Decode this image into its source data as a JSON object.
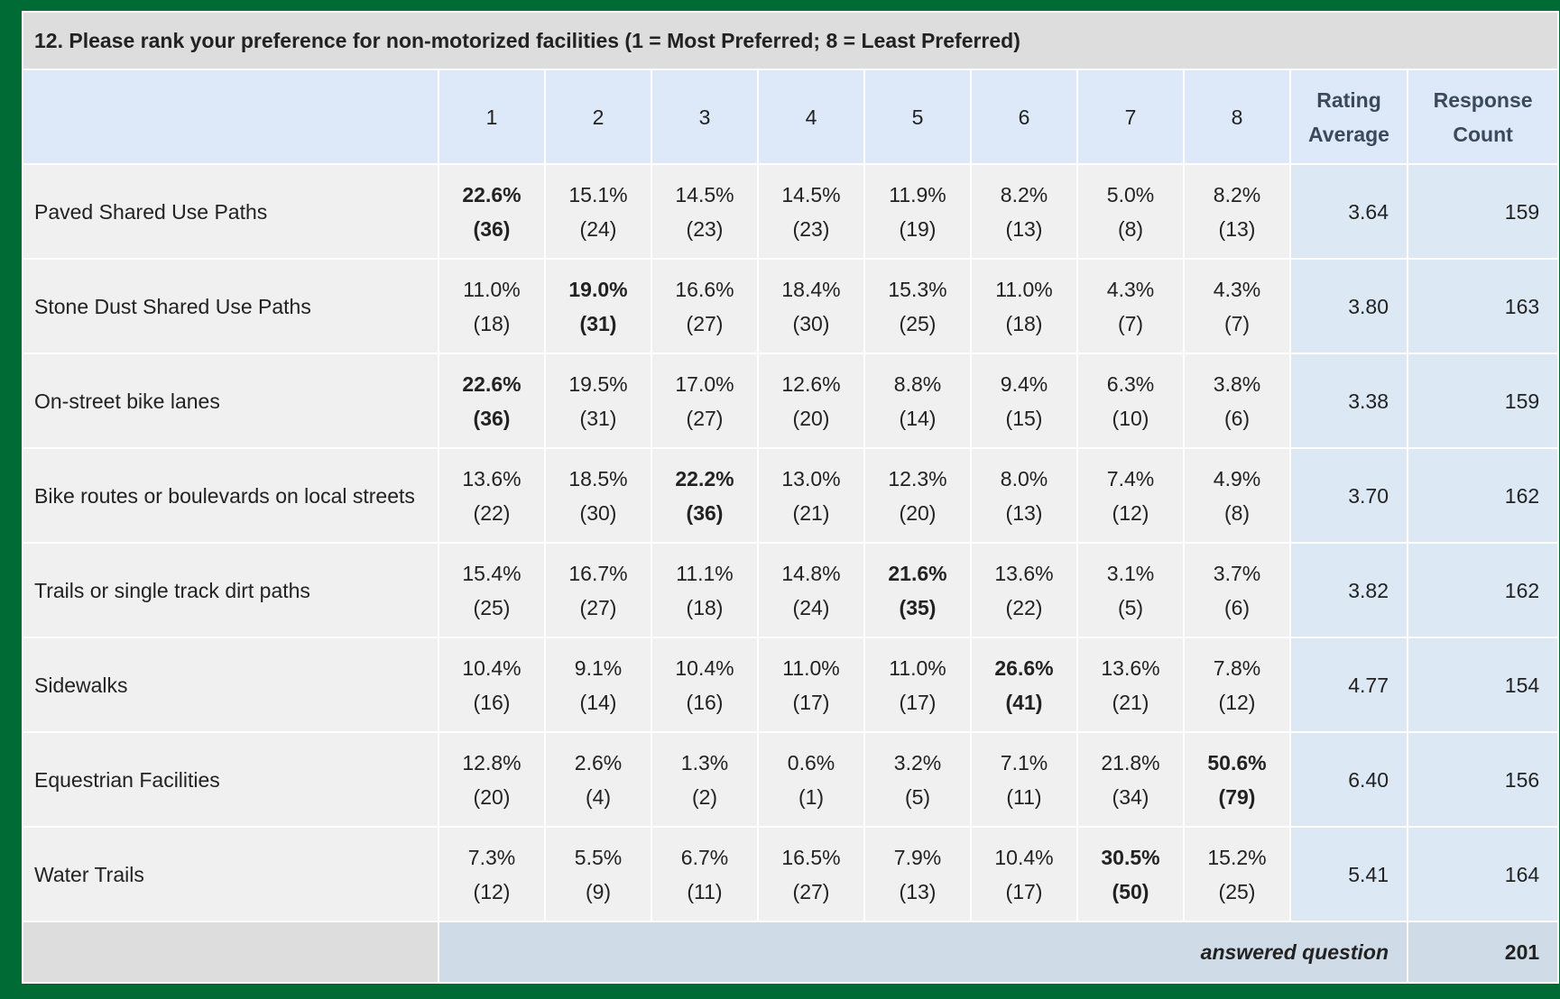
{
  "title": "12. Please rank your preference for non-motorized facilities (1 = Most Preferred; 8 = Least Preferred)",
  "table": {
    "columns": [
      "1",
      "2",
      "3",
      "4",
      "5",
      "6",
      "7",
      "8",
      "Rating Average",
      "Response Count"
    ],
    "rows": [
      {
        "label": "Paved Shared Use Paths",
        "cells": [
          {
            "percent": "22.6%",
            "count": "(36)",
            "bold": true
          },
          {
            "percent": "15.1%",
            "count": "(24)"
          },
          {
            "percent": "14.5%",
            "count": "(23)"
          },
          {
            "percent": "14.5%",
            "count": "(23)"
          },
          {
            "percent": "11.9%",
            "count": "(19)"
          },
          {
            "percent": "8.2%",
            "count": "(13)"
          },
          {
            "percent": "5.0%",
            "count": "(8)"
          },
          {
            "percent": "8.2%",
            "count": "(13)"
          }
        ],
        "rating": "3.64",
        "responses": "159"
      },
      {
        "label": "Stone Dust Shared Use Paths",
        "cells": [
          {
            "percent": "11.0%",
            "count": "(18)"
          },
          {
            "percent": "19.0%",
            "count": "(31)",
            "bold": true
          },
          {
            "percent": "16.6%",
            "count": "(27)"
          },
          {
            "percent": "18.4%",
            "count": "(30)"
          },
          {
            "percent": "15.3%",
            "count": "(25)"
          },
          {
            "percent": "11.0%",
            "count": "(18)"
          },
          {
            "percent": "4.3%",
            "count": "(7)"
          },
          {
            "percent": "4.3%",
            "count": "(7)"
          }
        ],
        "rating": "3.80",
        "responses": "163"
      },
      {
        "label": "On-street bike lanes",
        "cells": [
          {
            "percent": "22.6%",
            "count": "(36)",
            "bold": true
          },
          {
            "percent": "19.5%",
            "count": "(31)"
          },
          {
            "percent": "17.0%",
            "count": "(27)"
          },
          {
            "percent": "12.6%",
            "count": "(20)"
          },
          {
            "percent": "8.8%",
            "count": "(14)"
          },
          {
            "percent": "9.4%",
            "count": "(15)"
          },
          {
            "percent": "6.3%",
            "count": "(10)"
          },
          {
            "percent": "3.8%",
            "count": "(6)"
          }
        ],
        "rating": "3.38",
        "responses": "159"
      },
      {
        "label": "Bike routes or boulevards on local streets",
        "cells": [
          {
            "percent": "13.6%",
            "count": "(22)"
          },
          {
            "percent": "18.5%",
            "count": "(30)"
          },
          {
            "percent": "22.2%",
            "count": "(36)",
            "bold": true
          },
          {
            "percent": "13.0%",
            "count": "(21)"
          },
          {
            "percent": "12.3%",
            "count": "(20)"
          },
          {
            "percent": "8.0%",
            "count": "(13)"
          },
          {
            "percent": "7.4%",
            "count": "(12)"
          },
          {
            "percent": "4.9%",
            "count": "(8)"
          }
        ],
        "rating": "3.70",
        "responses": "162"
      },
      {
        "label": "Trails or single track dirt paths",
        "cells": [
          {
            "percent": "15.4%",
            "count": "(25)"
          },
          {
            "percent": "16.7%",
            "count": "(27)"
          },
          {
            "percent": "11.1%",
            "count": "(18)"
          },
          {
            "percent": "14.8%",
            "count": "(24)"
          },
          {
            "percent": "21.6%",
            "count": "(35)",
            "bold": true
          },
          {
            "percent": "13.6%",
            "count": "(22)"
          },
          {
            "percent": "3.1%",
            "count": "(5)"
          },
          {
            "percent": "3.7%",
            "count": "(6)"
          }
        ],
        "rating": "3.82",
        "responses": "162"
      },
      {
        "label": "Sidewalks",
        "cells": [
          {
            "percent": "10.4%",
            "count": "(16)"
          },
          {
            "percent": "9.1%",
            "count": "(14)"
          },
          {
            "percent": "10.4%",
            "count": "(16)"
          },
          {
            "percent": "11.0%",
            "count": "(17)"
          },
          {
            "percent": "11.0%",
            "count": "(17)"
          },
          {
            "percent": "26.6%",
            "count": "(41)",
            "bold": true
          },
          {
            "percent": "13.6%",
            "count": "(21)"
          },
          {
            "percent": "7.8%",
            "count": "(12)"
          }
        ],
        "rating": "4.77",
        "responses": "154"
      },
      {
        "label": "Equestrian Facilities",
        "cells": [
          {
            "percent": "12.8%",
            "count": "(20)"
          },
          {
            "percent": "2.6%",
            "count": "(4)"
          },
          {
            "percent": "1.3%",
            "count": "(2)"
          },
          {
            "percent": "0.6%",
            "count": "(1)"
          },
          {
            "percent": "3.2%",
            "count": "(5)"
          },
          {
            "percent": "7.1%",
            "count": "(11)"
          },
          {
            "percent": "21.8%",
            "count": "(34)"
          },
          {
            "percent": "50.6%",
            "count": "(79)",
            "bold": true
          }
        ],
        "rating": "6.40",
        "responses": "156"
      },
      {
        "label": "Water Trails",
        "cells": [
          {
            "percent": "7.3%",
            "count": "(12)"
          },
          {
            "percent": "5.5%",
            "count": "(9)"
          },
          {
            "percent": "6.7%",
            "count": "(11)"
          },
          {
            "percent": "16.5%",
            "count": "(27)"
          },
          {
            "percent": "7.9%",
            "count": "(13)"
          },
          {
            "percent": "10.4%",
            "count": "(17)"
          },
          {
            "percent": "30.5%",
            "count": "(50)",
            "bold": true
          },
          {
            "percent": "15.2%",
            "count": "(25)"
          }
        ],
        "rating": "5.41",
        "responses": "164"
      }
    ],
    "footer": {
      "label": "answered question",
      "value": "201"
    }
  }
}
